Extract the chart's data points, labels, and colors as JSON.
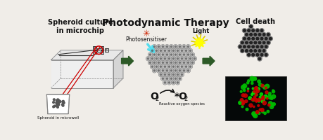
{
  "title": "Photodynamic Therapy",
  "bg_color": "#f0ede8",
  "section1_label": "Spheroid culture\nin microchip",
  "section1_sub": "Spheroid in microwell",
  "photosens_label": "Photosensitiser",
  "light_label": "Light",
  "section3_label": "Cell death",
  "o2_label": "O",
  "o2_sub": "2",
  "o2star_label": "*O",
  "o2star_sub": "2",
  "ros_label": "Reactive oxygen species",
  "arrow_color": "#2d5a27",
  "cell_color_gray": "#b0b0b0",
  "cell_color_light": "#c8c8c8",
  "cell_outline": "#666666",
  "cell_dark": "#222222",
  "photosens_arrow_color": "#55ddee",
  "light_color": "#ffff00",
  "light_ray_color": "#dddd00",
  "red_circle_color": "#cc0000",
  "text_color": "#111111",
  "chip_face_color": "#efefef",
  "chip_side_color": "#cccccc",
  "chip_edge_color": "#888888"
}
